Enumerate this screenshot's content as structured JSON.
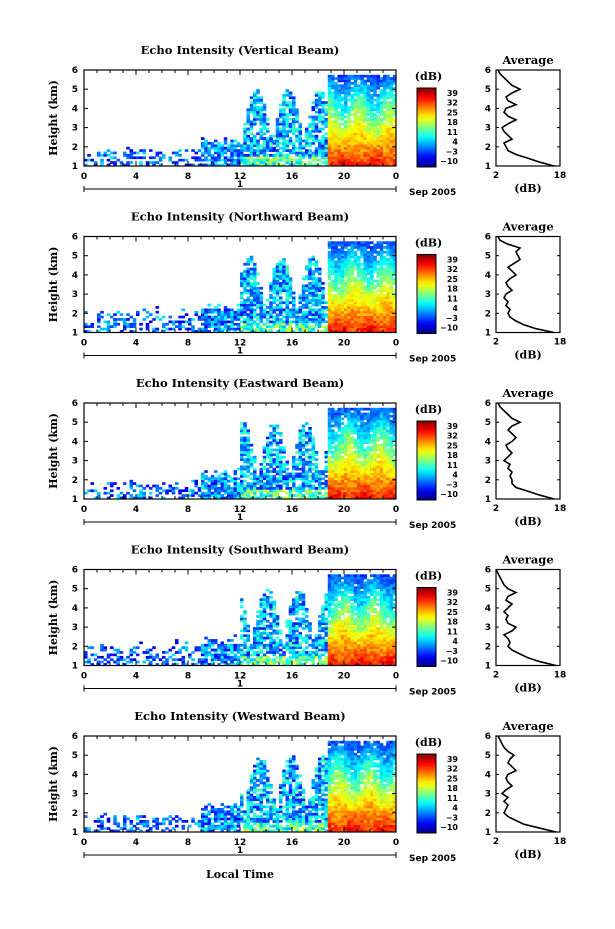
{
  "chart_data": {
    "type": "heatmap",
    "shared": {
      "x_ticks": [
        "0",
        "4",
        "8",
        "12",
        "16",
        "20",
        "0"
      ],
      "date_axis_label": "1",
      "date_axis_suffix": "Sep 2005",
      "xlabel": "Local Time",
      "ylabel": "Height (km)",
      "y_ticks": [
        "1",
        "2",
        "3",
        "4",
        "5",
        "6"
      ],
      "ylim": [
        1,
        6
      ],
      "xlim_hours": [
        0,
        24
      ],
      "colorbar_unit": "(dB)",
      "colorbar_ticks": [
        "−10",
        "−3",
        "4",
        "11",
        "18",
        "25",
        "32",
        "39"
      ],
      "colorbar_range": [
        -12,
        42
      ],
      "avg_title": "Average",
      "avg_xlabel": "(dB)",
      "avg_xticks": [
        "2",
        "18"
      ],
      "avg_xlim": [
        2,
        18
      ]
    },
    "panels": [
      {
        "title": "Echo Intensity (Vertical Beam)",
        "average_profile": [
          [
            1.0,
            16.5
          ],
          [
            1.2,
            13
          ],
          [
            1.4,
            10
          ],
          [
            1.6,
            7
          ],
          [
            1.8,
            5
          ],
          [
            2.0,
            4.5
          ],
          [
            2.2,
            4
          ],
          [
            2.4,
            6
          ],
          [
            2.6,
            5
          ],
          [
            2.8,
            4
          ],
          [
            3.0,
            3.5
          ],
          [
            3.2,
            5
          ],
          [
            3.4,
            7
          ],
          [
            3.6,
            5
          ],
          [
            3.8,
            4
          ],
          [
            4.0,
            4.5
          ],
          [
            4.2,
            7
          ],
          [
            4.4,
            5
          ],
          [
            4.6,
            4.5
          ],
          [
            4.8,
            6
          ],
          [
            5.0,
            8
          ],
          [
            5.2,
            6
          ],
          [
            5.4,
            5
          ],
          [
            5.6,
            4
          ],
          [
            5.8,
            3
          ],
          [
            6.0,
            2.5
          ]
        ]
      },
      {
        "title": "Echo Intensity (Northward Beam)",
        "average_profile": [
          [
            1.0,
            16.5
          ],
          [
            1.2,
            12
          ],
          [
            1.4,
            9
          ],
          [
            1.6,
            7
          ],
          [
            1.8,
            5.5
          ],
          [
            2.0,
            5
          ],
          [
            2.2,
            5.5
          ],
          [
            2.4,
            4.5
          ],
          [
            2.6,
            5
          ],
          [
            2.8,
            4
          ],
          [
            3.0,
            4.5
          ],
          [
            3.2,
            6
          ],
          [
            3.4,
            5
          ],
          [
            3.6,
            4.5
          ],
          [
            3.8,
            5.5
          ],
          [
            4.0,
            7
          ],
          [
            4.2,
            6
          ],
          [
            4.4,
            5
          ],
          [
            4.6,
            6.5
          ],
          [
            4.8,
            8
          ],
          [
            5.0,
            7.5
          ],
          [
            5.2,
            7
          ],
          [
            5.4,
            8
          ],
          [
            5.6,
            5
          ],
          [
            5.8,
            3
          ],
          [
            6.0,
            2.5
          ]
        ]
      },
      {
        "title": "Echo Intensity (Eastward Beam)",
        "average_profile": [
          [
            1.0,
            16.5
          ],
          [
            1.2,
            13
          ],
          [
            1.4,
            10
          ],
          [
            1.6,
            7
          ],
          [
            1.8,
            6
          ],
          [
            2.0,
            6
          ],
          [
            2.2,
            5.5
          ],
          [
            2.4,
            6
          ],
          [
            2.6,
            5
          ],
          [
            2.8,
            5.5
          ],
          [
            3.0,
            4
          ],
          [
            3.2,
            5
          ],
          [
            3.4,
            6
          ],
          [
            3.6,
            5
          ],
          [
            3.8,
            4.5
          ],
          [
            4.0,
            6
          ],
          [
            4.2,
            7
          ],
          [
            4.4,
            6
          ],
          [
            4.6,
            5
          ],
          [
            4.8,
            6
          ],
          [
            5.0,
            8
          ],
          [
            5.2,
            6
          ],
          [
            5.4,
            5
          ],
          [
            5.6,
            4
          ],
          [
            5.8,
            3
          ],
          [
            6.0,
            2.5
          ]
        ]
      },
      {
        "title": "Echo Intensity (Southward Beam)",
        "average_profile": [
          [
            1.0,
            17
          ],
          [
            1.2,
            13
          ],
          [
            1.4,
            10
          ],
          [
            1.6,
            8
          ],
          [
            1.8,
            6
          ],
          [
            2.0,
            5
          ],
          [
            2.2,
            5.5
          ],
          [
            2.4,
            5
          ],
          [
            2.6,
            4
          ],
          [
            2.8,
            6
          ],
          [
            3.0,
            7
          ],
          [
            3.2,
            5
          ],
          [
            3.4,
            4.5
          ],
          [
            3.6,
            5
          ],
          [
            3.8,
            4
          ],
          [
            4.0,
            5
          ],
          [
            4.2,
            6
          ],
          [
            4.4,
            4.5
          ],
          [
            4.6,
            5
          ],
          [
            4.8,
            7
          ],
          [
            5.0,
            5
          ],
          [
            5.2,
            4
          ],
          [
            5.4,
            3.5
          ],
          [
            5.6,
            3
          ],
          [
            5.8,
            2.5
          ],
          [
            6.0,
            2
          ]
        ]
      },
      {
        "title": "Echo Intensity (Westward Beam)",
        "average_profile": [
          [
            1.0,
            17
          ],
          [
            1.2,
            13
          ],
          [
            1.4,
            9
          ],
          [
            1.6,
            7
          ],
          [
            1.8,
            5
          ],
          [
            2.0,
            4
          ],
          [
            2.2,
            4.5
          ],
          [
            2.4,
            5
          ],
          [
            2.6,
            4
          ],
          [
            2.8,
            5
          ],
          [
            3.0,
            3.5
          ],
          [
            3.2,
            4.5
          ],
          [
            3.4,
            6
          ],
          [
            3.6,
            5
          ],
          [
            3.8,
            4.5
          ],
          [
            4.0,
            5
          ],
          [
            4.2,
            7
          ],
          [
            4.4,
            6
          ],
          [
            4.6,
            5
          ],
          [
            4.8,
            5.5
          ],
          [
            5.0,
            6.5
          ],
          [
            5.2,
            5
          ],
          [
            5.4,
            4
          ],
          [
            5.6,
            3.5
          ],
          [
            5.8,
            3
          ],
          [
            6.0,
            2.5
          ]
        ]
      }
    ]
  }
}
